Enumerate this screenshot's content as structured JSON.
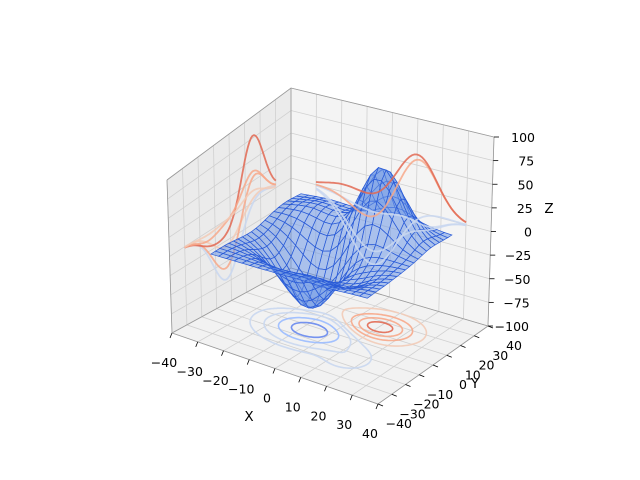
{
  "chart_data": {
    "type": "surface3d",
    "title": "",
    "xlabel": "X",
    "ylabel": "Y",
    "zlabel": "Z",
    "xlim": [
      -40,
      40
    ],
    "ylim": [
      -40,
      40
    ],
    "zlim": [
      -100,
      100
    ],
    "xticks": [
      -40,
      -30,
      -20,
      -10,
      0,
      10,
      20,
      30,
      40
    ],
    "yticks": [
      -40,
      -30,
      -20,
      -10,
      0,
      10,
      20,
      30,
      40
    ],
    "zticks": [
      -100,
      -75,
      -50,
      -25,
      0,
      25,
      50,
      75,
      100
    ],
    "xtick_labels": [
      "−40",
      "−30",
      "−20",
      "−10",
      "0",
      "10",
      "20",
      "30",
      "40"
    ],
    "ytick_labels": [
      "−40",
      "−30",
      "−20",
      "−10",
      "0",
      "10",
      "20",
      "30",
      "40"
    ],
    "ztick_labels": [
      "−100",
      "−75",
      "−50",
      "−25",
      "0",
      "25",
      "50",
      "75",
      "100"
    ],
    "surface": {
      "style": "wireframe surface",
      "range": [
        -30,
        30
      ],
      "approx_z_min": -75,
      "approx_z_max": 80,
      "color": "#4f7fe0"
    },
    "projections": [
      {
        "name": "z-offset contours",
        "plane": "z",
        "offset": -100
      },
      {
        "name": "x-offset contours",
        "plane": "x",
        "offset": -40
      },
      {
        "name": "y-offset contours",
        "plane": "y",
        "offset": 40
      }
    ],
    "colormap": "coolwarm",
    "grid": true
  }
}
